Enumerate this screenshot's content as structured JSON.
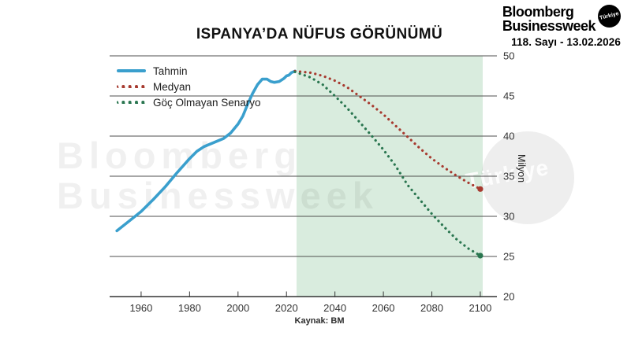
{
  "header": {
    "logo_line1": "Bloomberg",
    "logo_line2": "Businessweek",
    "logo_badge": "Türkiye",
    "issue": "118. Sayı - 13.02.2026"
  },
  "title": "ISPANYA’DA NÜFUS GÖRÜNÜMÜ",
  "source": "Kaynak: BM",
  "watermark": {
    "line1": "Bloomberg",
    "line2": "Businessweek",
    "badge": "Türkiye"
  },
  "legend": [
    {
      "label": "Tahmin",
      "color": "#3a9fcd",
      "style": "solid"
    },
    {
      "label": "Medyan",
      "color": "#a73b30",
      "style": "dotted"
    },
    {
      "label": "Göç Olmayan Senaryo",
      "color": "#2a7650",
      "style": "dotted"
    }
  ],
  "colors": {
    "forecast_shade": "#d9ecde",
    "gridline": "#4f4f4f",
    "axis": "#333333",
    "tahmin_blue": "#3a9fcd",
    "medyan_red": "#a73b30",
    "goc_green": "#2a7650"
  },
  "chart_data": {
    "type": "line",
    "title": "ISPANYA’DA NÜFUS GÖRÜNÜMÜ",
    "xlabel": "",
    "ylabel": "Milyon",
    "xlim": [
      1947,
      2101
    ],
    "ylim": [
      20,
      50
    ],
    "x_ticks": [
      1960,
      1980,
      2000,
      2020,
      2040,
      2060,
      2080,
      2100
    ],
    "y_ticks": [
      20,
      25,
      30,
      35,
      40,
      45,
      50
    ],
    "grid": true,
    "legend_position": "top-left",
    "forecast_region": {
      "start": 2024,
      "end": 2101
    },
    "source": "Kaynak: BM",
    "series": [
      {
        "name": "Tahmin",
        "style": "solid",
        "x": [
          1950,
          1955,
          1960,
          1965,
          1970,
          1975,
          1980,
          1983,
          1986,
          1990,
          1994,
          1997,
          2000,
          2002,
          2004,
          2006,
          2008,
          2010,
          2012,
          2013.5,
          2015,
          2017,
          2019,
          2020,
          2021,
          2022,
          2023.5
        ],
        "y": [
          28.2,
          29.4,
          30.6,
          32.1,
          33.7,
          35.5,
          37.2,
          38.1,
          38.7,
          39.2,
          39.7,
          40.4,
          41.5,
          42.5,
          44.0,
          45.3,
          46.4,
          47.1,
          47.1,
          46.8,
          46.7,
          46.8,
          47.2,
          47.5,
          47.6,
          47.9,
          48.1
        ]
      },
      {
        "name": "Medyan",
        "style": "dotted",
        "x": [
          2023.5,
          2030,
          2035,
          2040,
          2045,
          2050,
          2055,
          2060,
          2065,
          2070,
          2075,
          2080,
          2085,
          2090,
          2095,
          2100
        ],
        "y": [
          48.1,
          47.9,
          47.5,
          46.9,
          46.1,
          45.0,
          43.9,
          42.7,
          41.3,
          39.9,
          38.5,
          37.2,
          36.1,
          35.1,
          34.2,
          33.4
        ]
      },
      {
        "name": "Göç Olmayan Senaryo",
        "style": "dotted",
        "x": [
          2023.5,
          2030,
          2035,
          2040,
          2045,
          2050,
          2055,
          2060,
          2065,
          2070,
          2075,
          2080,
          2085,
          2090,
          2095,
          2100
        ],
        "y": [
          48.0,
          47.3,
          46.4,
          45.0,
          43.5,
          41.8,
          40.1,
          38.3,
          36.3,
          33.9,
          32.1,
          30.3,
          28.7,
          27.2,
          26.0,
          25.1
        ]
      }
    ]
  }
}
